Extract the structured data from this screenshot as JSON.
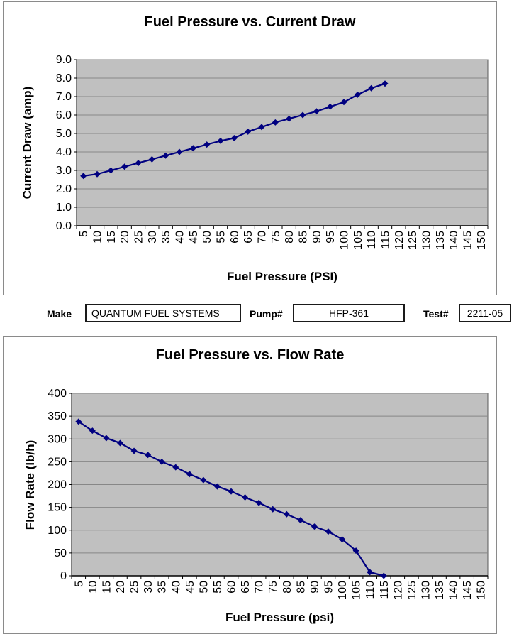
{
  "form": {
    "make_label": "Make",
    "make_value": "QUANTUM FUEL SYSTEMS",
    "pump_label": "Pump#",
    "pump_value": "HFP-361",
    "test_label": "Test#",
    "test_value": "2211-05"
  },
  "colors": {
    "series_navy": "#000080",
    "plot_background": "#c0c0c0",
    "gridline_gray": "#878787",
    "plot_border": "#595959",
    "frame_border": "#8a8a8a",
    "axis_black": "#000000"
  },
  "chart_data": [
    {
      "type": "line",
      "title": "Fuel Pressure vs. Current Draw",
      "xlabel": "Fuel Pressure (PSI)",
      "ylabel": "Current Draw (amp)",
      "x_categories": [
        5,
        10,
        15,
        20,
        25,
        30,
        35,
        40,
        45,
        50,
        55,
        60,
        65,
        70,
        75,
        80,
        85,
        90,
        95,
        100,
        105,
        110,
        115,
        120,
        125,
        130,
        135,
        140,
        145,
        150
      ],
      "x": [
        5,
        10,
        15,
        20,
        25,
        30,
        35,
        40,
        45,
        50,
        55,
        60,
        65,
        70,
        75,
        80,
        85,
        90,
        95,
        100,
        105,
        110,
        115
      ],
      "y": [
        2.7,
        2.8,
        3.0,
        3.2,
        3.4,
        3.6,
        3.8,
        4.0,
        4.2,
        4.4,
        4.6,
        4.75,
        5.1,
        5.35,
        5.6,
        5.8,
        6.0,
        6.2,
        6.45,
        6.7,
        7.1,
        7.45,
        7.7
      ],
      "ylim": [
        0,
        9
      ],
      "ytick_step": 1,
      "ytick_decimals": 1,
      "grid": true,
      "legend": "none",
      "marker": "diamond",
      "series_color": "#000080",
      "plot_bg": "#c0c0c0",
      "grid_color": "#878787"
    },
    {
      "type": "line",
      "title": "Fuel Pressure vs. Flow Rate",
      "xlabel": "Fuel Pressure (psi)",
      "ylabel": "Flow Rate (lb/h)",
      "x_categories": [
        5,
        10,
        15,
        20,
        25,
        30,
        35,
        40,
        45,
        50,
        55,
        60,
        65,
        70,
        75,
        80,
        85,
        90,
        95,
        100,
        105,
        110,
        115,
        120,
        125,
        130,
        135,
        140,
        145,
        150
      ],
      "x": [
        5,
        10,
        15,
        20,
        25,
        30,
        35,
        40,
        45,
        50,
        55,
        60,
        65,
        70,
        75,
        80,
        85,
        90,
        95,
        100,
        105,
        110,
        115
      ],
      "y": [
        338,
        318,
        302,
        291,
        274,
        265,
        250,
        238,
        223,
        210,
        196,
        185,
        172,
        160,
        146,
        135,
        122,
        108,
        97,
        80,
        55,
        8,
        0
      ],
      "ylim": [
        0,
        400
      ],
      "ytick_step": 50,
      "ytick_decimals": 0,
      "grid": true,
      "legend": "none",
      "marker": "diamond",
      "series_color": "#000080",
      "plot_bg": "#c0c0c0",
      "grid_color": "#878787"
    }
  ]
}
